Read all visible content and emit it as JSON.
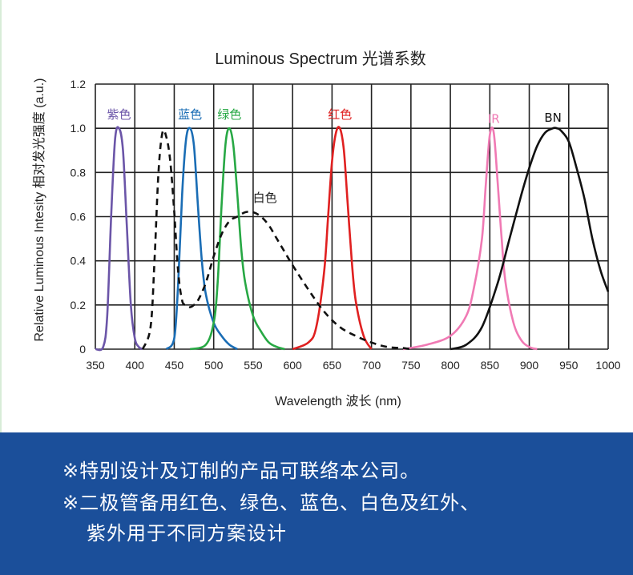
{
  "chart_data": {
    "type": "line",
    "title": "Luminous Spectrum 光谱系数",
    "xlabel": "Wavelength 波长 (nm)",
    "ylabel": "Relative Luminous Intesity 相对发光强度 (a.u.)",
    "xlim": [
      350,
      1000
    ],
    "ylim": [
      0,
      1.2
    ],
    "xticks": [
      350,
      400,
      450,
      500,
      550,
      600,
      650,
      700,
      750,
      800,
      850,
      900,
      950,
      1000
    ],
    "yticks": [
      "0",
      "0.2",
      "0.4",
      "0.6",
      "0.8",
      "1.0",
      "1.2"
    ],
    "grid": true,
    "legend": "inline labels",
    "series": [
      {
        "name": "紫色",
        "color": "#6b55a8",
        "style": "solid",
        "x": [
          350,
          360,
          365,
          370,
          375,
          380,
          385,
          390,
          395,
          400,
          405,
          410
        ],
        "y": [
          0,
          0.01,
          0.15,
          0.6,
          0.95,
          1.0,
          0.9,
          0.55,
          0.2,
          0.05,
          0.01,
          0
        ]
      },
      {
        "name": "蓝色",
        "color": "#1a6db5",
        "style": "solid",
        "x": [
          440,
          450,
          455,
          460,
          465,
          470,
          475,
          480,
          485,
          490,
          500,
          510,
          520,
          530
        ],
        "y": [
          0,
          0.05,
          0.3,
          0.7,
          0.95,
          1.0,
          0.92,
          0.65,
          0.4,
          0.25,
          0.12,
          0.06,
          0.02,
          0
        ]
      },
      {
        "name": "绿色",
        "color": "#27a844",
        "style": "solid",
        "x": [
          470,
          490,
          500,
          505,
          510,
          515,
          520,
          525,
          530,
          535,
          540,
          550,
          560,
          570,
          580,
          590
        ],
        "y": [
          0,
          0.02,
          0.12,
          0.3,
          0.65,
          0.93,
          1.0,
          0.92,
          0.7,
          0.45,
          0.3,
          0.15,
          0.08,
          0.03,
          0.01,
          0
        ]
      },
      {
        "name": "红色",
        "color": "#e02020",
        "style": "solid",
        "x": [
          600,
          620,
          630,
          640,
          645,
          650,
          655,
          660,
          665,
          670,
          675,
          680,
          690,
          700
        ],
        "y": [
          0,
          0.03,
          0.1,
          0.35,
          0.6,
          0.85,
          0.98,
          1.0,
          0.9,
          0.65,
          0.4,
          0.22,
          0.06,
          0
        ]
      },
      {
        "name": "IR",
        "color": "#f07ab4",
        "style": "solid",
        "x": [
          740,
          770,
          800,
          820,
          830,
          840,
          845,
          850,
          855,
          860,
          865,
          870,
          880,
          890,
          900,
          910
        ],
        "y": [
          0,
          0.02,
          0.06,
          0.15,
          0.28,
          0.5,
          0.75,
          0.97,
          0.98,
          0.75,
          0.5,
          0.3,
          0.12,
          0.04,
          0.01,
          0
        ]
      },
      {
        "name": "BN",
        "color": "#111111",
        "style": "solid",
        "x": [
          800,
          820,
          840,
          860,
          875,
          890,
          900,
          910,
          920,
          930,
          935,
          940,
          950,
          960,
          970,
          980,
          990,
          1000
        ],
        "y": [
          0,
          0.02,
          0.1,
          0.3,
          0.5,
          0.7,
          0.82,
          0.92,
          0.98,
          1.0,
          1.0,
          0.99,
          0.94,
          0.82,
          0.68,
          0.5,
          0.36,
          0.26
        ]
      },
      {
        "name": "白色",
        "color": "#111111",
        "style": "dashed",
        "x": [
          410,
          420,
          425,
          430,
          435,
          440,
          445,
          450,
          455,
          460,
          465,
          470,
          475,
          480,
          490,
          500,
          510,
          520,
          530,
          540,
          550,
          560,
          570,
          580,
          590,
          600,
          620,
          640,
          660,
          680,
          700,
          720,
          740,
          750
        ],
        "y": [
          0,
          0.1,
          0.4,
          0.8,
          0.98,
          0.96,
          0.85,
          0.62,
          0.35,
          0.22,
          0.2,
          0.19,
          0.2,
          0.22,
          0.3,
          0.42,
          0.52,
          0.58,
          0.6,
          0.62,
          0.62,
          0.6,
          0.56,
          0.5,
          0.44,
          0.38,
          0.27,
          0.17,
          0.1,
          0.06,
          0.03,
          0.01,
          0.005,
          0
        ]
      }
    ]
  },
  "notes": {
    "line1": "※特别设计及订制的产品可联络本公司。",
    "line2": "※二极管备用红色、绿色、蓝色、白色及红外、",
    "line3": "紫外用于不同方案设计"
  }
}
